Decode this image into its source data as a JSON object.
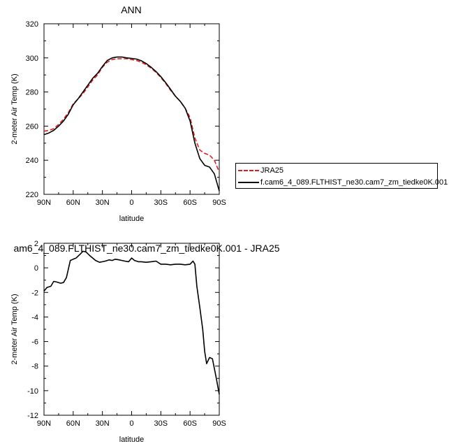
{
  "chart_data": [
    {
      "type": "line",
      "title": "ANN",
      "xlabel": "latitude",
      "ylabel": "2-meter Air Temp (K)",
      "xlim": [
        90,
        -90
      ],
      "ylim": [
        220,
        320
      ],
      "xticks": [
        90,
        60,
        30,
        0,
        -30,
        -60,
        -90
      ],
      "xtick_labels": [
        "90N",
        "60N",
        "30N",
        "0",
        "30S",
        "60S",
        "90S"
      ],
      "yticks": [
        220,
        240,
        260,
        280,
        300,
        320
      ],
      "ytick_labels": [
        "220",
        "240",
        "260",
        "280",
        "300",
        "320"
      ],
      "grid": false,
      "legend": "right-outside",
      "series": [
        {
          "name": "JRA25",
          "color": "#e41a1c",
          "style": "dashed",
          "x": [
            90,
            85,
            80,
            75,
            70,
            65,
            60,
            55,
            50,
            45,
            40,
            35,
            30,
            25,
            20,
            15,
            10,
            5,
            0,
            -5,
            -10,
            -15,
            -20,
            -25,
            -30,
            -35,
            -40,
            -45,
            -50,
            -55,
            -60,
            -65,
            -70,
            -75,
            -80,
            -85,
            -90
          ],
          "y": [
            257,
            257.5,
            258.5,
            261,
            264,
            268,
            273,
            276,
            279,
            283,
            287,
            290,
            294.5,
            297.5,
            299,
            299.5,
            299.5,
            299.5,
            299,
            298.5,
            297.5,
            296,
            294,
            291.5,
            288.5,
            285,
            281,
            277.5,
            274.5,
            270.5,
            265,
            253,
            246,
            244,
            243,
            240,
            233
          ]
        },
        {
          "name": "f.cam6_4_089.FLTHIST_ne30.cam7_zm_tiedke0K.001",
          "color": "#000000",
          "style": "solid",
          "x": [
            90,
            85,
            80,
            75,
            70,
            65,
            60,
            55,
            50,
            45,
            40,
            35,
            30,
            25,
            20,
            15,
            10,
            5,
            0,
            -5,
            -10,
            -15,
            -20,
            -25,
            -30,
            -35,
            -40,
            -45,
            -50,
            -55,
            -60,
            -65,
            -70,
            -75,
            -80,
            -85,
            -90
          ],
          "y": [
            255,
            256,
            257.5,
            260,
            263,
            267,
            272.5,
            276,
            280,
            284,
            288,
            291,
            295,
            298.5,
            300,
            300.5,
            300.5,
            300,
            299.7,
            299.3,
            298.3,
            296.7,
            294.5,
            292,
            289,
            285.5,
            281.5,
            277.5,
            274.5,
            270.5,
            263,
            250,
            241,
            237,
            236,
            232,
            222
          ]
        }
      ]
    },
    {
      "type": "line",
      "title": "am6_4_089.FLTHIST_ne30.cam7_zm_tiedke0K.001 - JRA25",
      "xlabel": "latitude",
      "ylabel": "2-meter Air Temp (K)",
      "xlim": [
        90,
        -90
      ],
      "ylim": [
        -12,
        2
      ],
      "xticks": [
        90,
        60,
        30,
        0,
        -30,
        -60,
        -90
      ],
      "xtick_labels": [
        "90N",
        "60N",
        "30N",
        "0",
        "30S",
        "60S",
        "90S"
      ],
      "yticks": [
        -12,
        -10,
        -8,
        -6,
        -4,
        -2,
        0,
        2
      ],
      "ytick_labels": [
        "-12",
        "-10",
        "-8",
        "-6",
        "-4",
        "-2",
        "0",
        "2"
      ],
      "grid": false,
      "series": [
        {
          "color": "#000000",
          "style": "solid",
          "x": [
            90,
            87,
            83,
            80,
            77,
            73,
            70,
            67,
            63,
            60,
            57,
            53,
            50,
            47,
            43,
            40,
            37,
            33,
            30,
            27,
            23,
            20,
            17,
            13,
            10,
            7,
            3,
            0,
            -3,
            -7,
            -10,
            -15,
            -20,
            -25,
            -30,
            -35,
            -40,
            -45,
            -50,
            -55,
            -60,
            -63,
            -65,
            -67,
            -70,
            -73,
            -75,
            -77,
            -80,
            -83,
            -85,
            -87,
            -90
          ],
          "y": [
            -1.9,
            -1.6,
            -1.5,
            -1.1,
            -1.15,
            -1.25,
            -1.2,
            -0.8,
            0.6,
            0.7,
            0.8,
            1.1,
            1.35,
            1.3,
            1.0,
            0.8,
            0.6,
            0.45,
            0.5,
            0.55,
            0.65,
            0.6,
            0.7,
            0.65,
            0.6,
            0.55,
            0.5,
            0.8,
            0.6,
            0.5,
            0.5,
            0.45,
            0.5,
            0.55,
            0.3,
            0.3,
            0.25,
            0.3,
            0.3,
            0.25,
            0.3,
            0.55,
            0.3,
            -1.5,
            -3.2,
            -5.0,
            -6.8,
            -7.8,
            -7.3,
            -7.4,
            -8.2,
            -9.0,
            -10.3
          ]
        }
      ]
    }
  ]
}
